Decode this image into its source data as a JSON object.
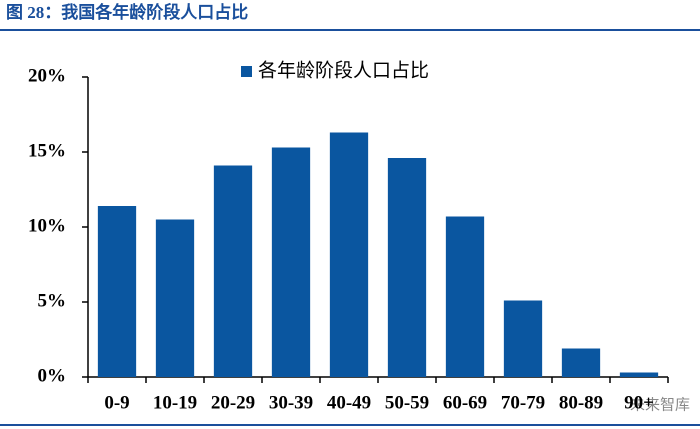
{
  "chart_data": {
    "type": "bar",
    "title": "图 28：我国各年龄阶段人口占比",
    "categories": [
      "0-9",
      "10-19",
      "20-29",
      "30-39",
      "40-49",
      "50-59",
      "60-69",
      "70-79",
      "80-89",
      "90+"
    ],
    "series": [
      {
        "name": "各年龄阶段人口占比",
        "color": "#0a56a0",
        "values": [
          11.4,
          10.5,
          14.1,
          15.3,
          16.3,
          14.6,
          10.7,
          5.1,
          1.9,
          0.3
        ]
      }
    ],
    "ylim": [
      0,
      20
    ],
    "yticks": [
      {
        "value": 0,
        "label": "0%"
      },
      {
        "value": 5,
        "label": "5%"
      },
      {
        "value": 10,
        "label": "10%"
      },
      {
        "value": 15,
        "label": "15%"
      },
      {
        "value": 20,
        "label": "20%"
      }
    ],
    "legend": "top",
    "watermark": "未来智库"
  }
}
